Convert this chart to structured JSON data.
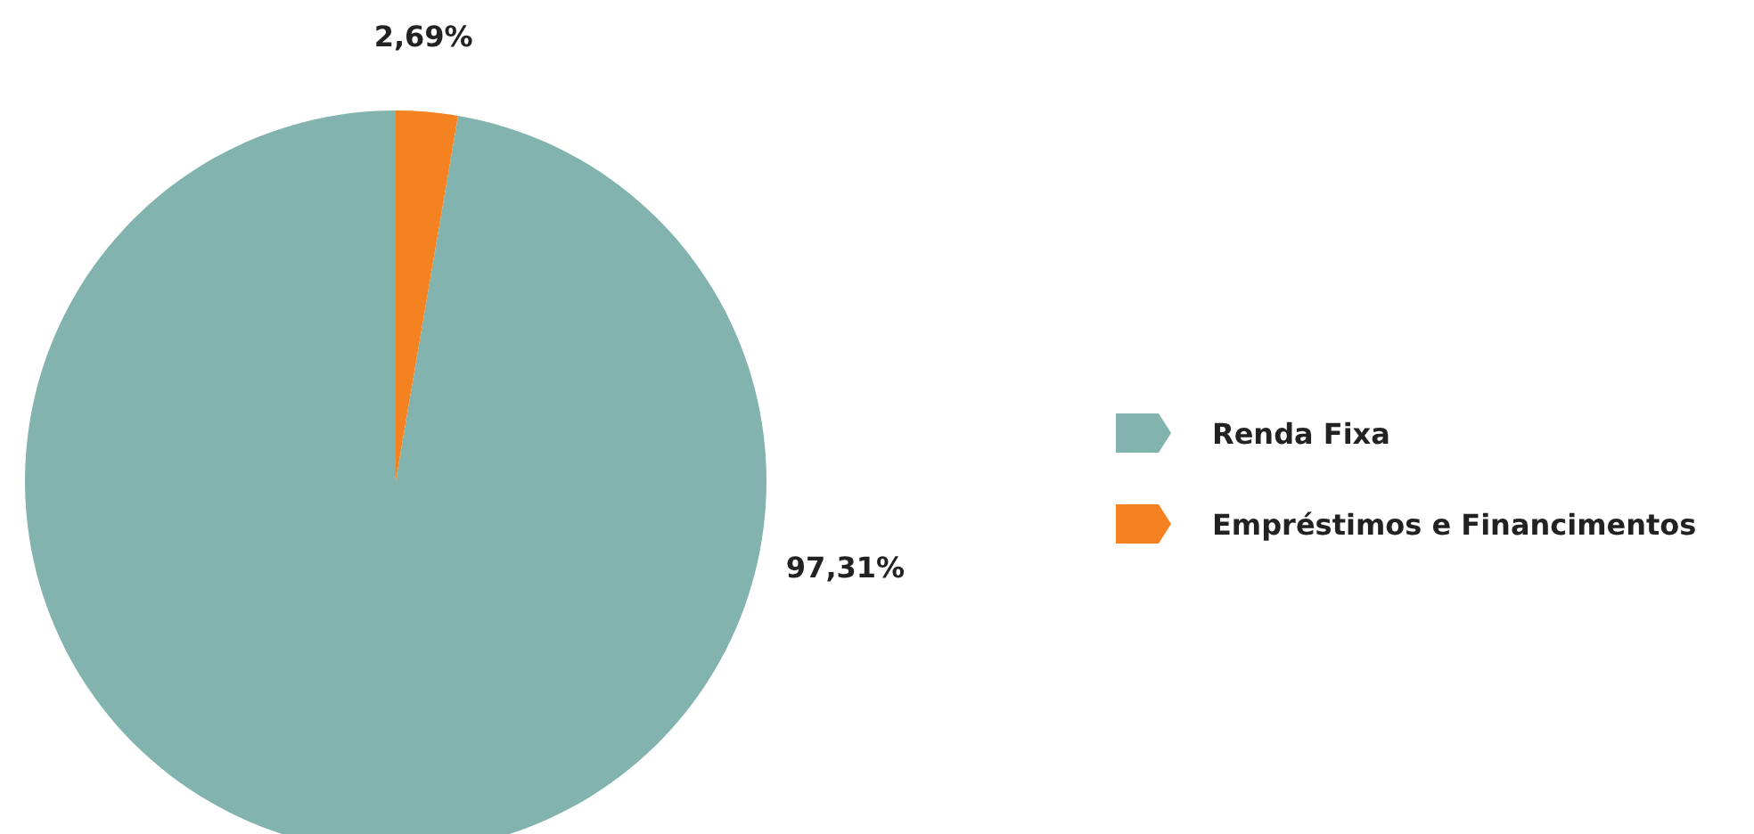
{
  "chart_data": {
    "type": "pie",
    "categories": [
      "Renda Fixa",
      "Empréstimos e Financimentos"
    ],
    "values": [
      97.31,
      2.69
    ],
    "colors": [
      "#82b3ae",
      "#f58220"
    ],
    "value_labels": [
      "97,31%",
      "2,69%"
    ],
    "legend": "right"
  }
}
